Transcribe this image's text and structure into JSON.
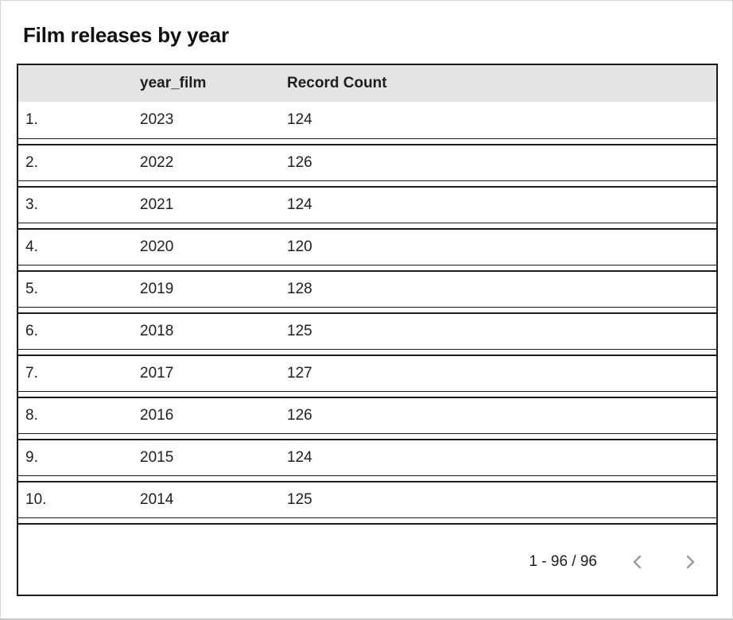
{
  "title": "Film releases by year",
  "table": {
    "columns": [
      "",
      "year_film",
      "Record Count"
    ],
    "rows": [
      {
        "index": "1.",
        "year_film": "2023",
        "record_count": "124"
      },
      {
        "index": "2.",
        "year_film": "2022",
        "record_count": "126"
      },
      {
        "index": "3.",
        "year_film": "2021",
        "record_count": "124"
      },
      {
        "index": "4.",
        "year_film": "2020",
        "record_count": "120"
      },
      {
        "index": "5.",
        "year_film": "2019",
        "record_count": "128"
      },
      {
        "index": "6.",
        "year_film": "2018",
        "record_count": "125"
      },
      {
        "index": "7.",
        "year_film": "2017",
        "record_count": "127"
      },
      {
        "index": "8.",
        "year_film": "2016",
        "record_count": "126"
      },
      {
        "index": "9.",
        "year_film": "2015",
        "record_count": "124"
      },
      {
        "index": "10.",
        "year_film": "2014",
        "record_count": "125"
      }
    ]
  },
  "chart_data": {
    "type": "table",
    "title": "Film releases by year",
    "columns": [
      "year_film",
      "Record Count"
    ],
    "categories": [
      "2023",
      "2022",
      "2021",
      "2020",
      "2019",
      "2018",
      "2017",
      "2016",
      "2015",
      "2014"
    ],
    "values": [
      124,
      126,
      124,
      120,
      128,
      125,
      127,
      126,
      124,
      125
    ]
  },
  "pagination": {
    "range_label": "1 - 96 / 96",
    "prev_icon": "chevron-left",
    "next_icon": "chevron-right"
  },
  "colors": {
    "header_bg": "#e4e4e4",
    "table_border": "#1a1a1a",
    "page_frame": "#d5d5d5",
    "chevron_gray": "#9a9a9a",
    "text": "#1f1f1f"
  }
}
